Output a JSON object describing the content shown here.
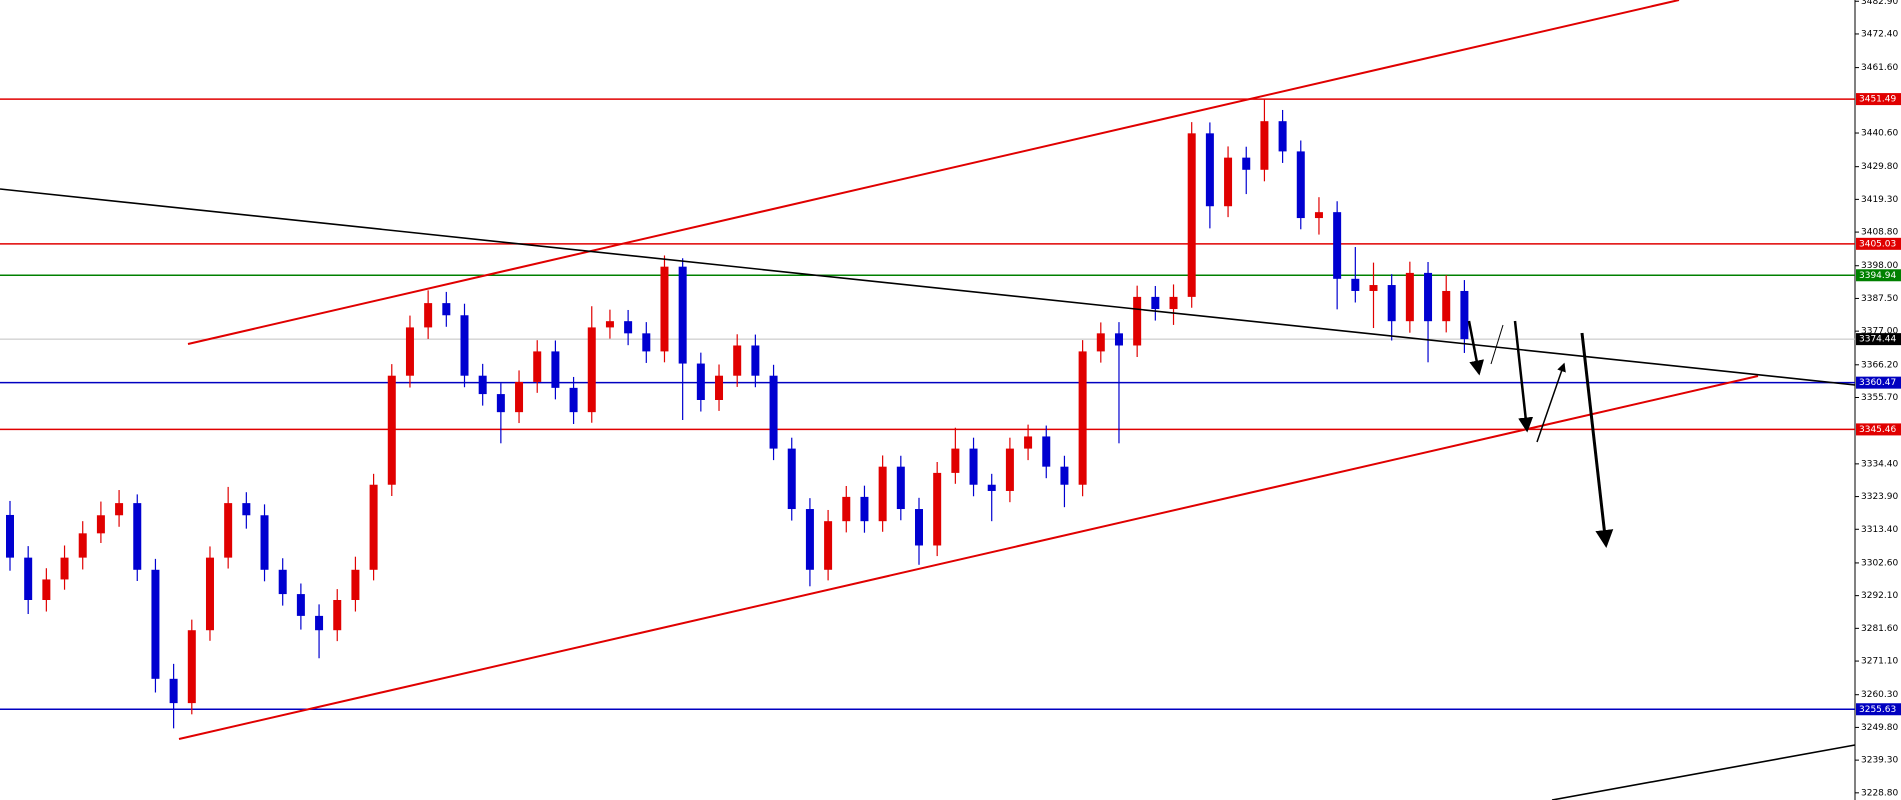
{
  "chart_data": {
    "type": "candlestick",
    "open": [
      3318.0,
      3304.3,
      3290.7,
      3297.3,
      3304.3,
      3312.1,
      3317.9,
      3321.8,
      3300.4,
      3265.4,
      3257.6,
      3281.0,
      3304.3,
      3321.8,
      3317.9,
      3300.4,
      3292.6,
      3285.6,
      3281.0,
      3290.7,
      3300.4,
      3327.7,
      3362.7,
      3378.2,
      3386.0,
      3382.1,
      3362.7,
      3356.8,
      3351.0,
      3360.7,
      3370.5,
      3358.8,
      3351.0,
      3378.2,
      3380.2,
      3376.3,
      3370.5,
      3397.7,
      3366.6,
      3354.9,
      3362.7,
      3372.4,
      3362.7,
      3339.3,
      3319.9,
      3300.4,
      3316.0,
      3323.8,
      3316.0,
      3333.5,
      3319.9,
      3308.2,
      3331.5,
      3339.3,
      3327.7,
      3325.7,
      3339.3,
      3343.2,
      3333.5,
      3327.7,
      3370.5,
      3376.3,
      3372.4,
      3388.0,
      3384.1,
      3388.0,
      3440.5,
      3417.1,
      3432.7,
      3428.8,
      3444.4,
      3434.7,
      3413.3,
      3415.2,
      3393.8,
      3389.9,
      3391.8,
      3380.2,
      3395.7,
      3380.2,
      3389.9
    ],
    "high": [
      3322.5,
      3308.0,
      3300.9,
      3308.2,
      3316.0,
      3322.3,
      3326.0,
      3324.6,
      3303.9,
      3270.2,
      3284.4,
      3307.9,
      3327.0,
      3325.3,
      3321.4,
      3304.1,
      3296.0,
      3289.3,
      3294.2,
      3304.6,
      3331.2,
      3366.4,
      3382.0,
      3390.1,
      3389.6,
      3385.8,
      3366.5,
      3360.3,
      3364.4,
      3374.1,
      3374.0,
      3362.3,
      3385.0,
      3383.9,
      3383.8,
      3379.9,
      3401.3,
      3400.4,
      3370.1,
      3366.3,
      3376.0,
      3375.9,
      3366.2,
      3342.8,
      3323.4,
      3319.6,
      3327.3,
      3327.4,
      3337.1,
      3337.0,
      3323.5,
      3335.0,
      3346.0,
      3342.8,
      3331.2,
      3342.8,
      3347.0,
      3346.7,
      3337.0,
      3374.1,
      3379.8,
      3379.9,
      3391.6,
      3391.5,
      3392.0,
      3444.1,
      3444.0,
      3436.3,
      3436.2,
      3451.5,
      3448.0,
      3438.2,
      3420.0,
      3418.7,
      3404.0,
      3399.0,
      3395.3,
      3399.3,
      3399.2,
      3395.0,
      3393.4
    ],
    "low": [
      3300.1,
      3286.2,
      3287.0,
      3294.0,
      3300.5,
      3309.0,
      3314.2,
      3296.8,
      3261.0,
      3249.5,
      3254.0,
      3277.6,
      3300.8,
      3313.6,
      3296.7,
      3288.9,
      3281.2,
      3272.0,
      3277.5,
      3287.0,
      3297.0,
      3324.1,
      3358.9,
      3374.5,
      3378.4,
      3359.0,
      3353.1,
      3341.0,
      3347.5,
      3357.2,
      3355.1,
      3347.2,
      3347.6,
      3374.6,
      3372.5,
      3366.8,
      3367.0,
      3348.5,
      3351.2,
      3351.4,
      3359.1,
      3359.0,
      3335.6,
      3316.2,
      3295.1,
      3297.0,
      3312.4,
      3312.3,
      3312.6,
      3316.3,
      3302.0,
      3304.8,
      3328.0,
      3324.0,
      3316.0,
      3322.1,
      3335.6,
      3329.8,
      3320.5,
      3324.0,
      3366.9,
      3341.0,
      3368.7,
      3380.4,
      3379.0,
      3384.5,
      3410.0,
      3413.6,
      3421.0,
      3425.1,
      3431.0,
      3409.7,
      3408.0,
      3384.0,
      3386.2,
      3378.0,
      3374.0,
      3376.5,
      3367.0,
      3376.6,
      3370.0
    ],
    "close": [
      3304.3,
      3290.7,
      3297.3,
      3304.3,
      3312.1,
      3317.9,
      3321.8,
      3300.4,
      3265.4,
      3257.6,
      3281.0,
      3304.3,
      3321.8,
      3317.9,
      3300.4,
      3292.6,
      3285.6,
      3281.0,
      3290.7,
      3300.4,
      3327.7,
      3362.7,
      3378.2,
      3386.0,
      3382.1,
      3362.7,
      3356.8,
      3351.0,
      3360.7,
      3370.5,
      3358.8,
      3351.0,
      3378.2,
      3380.2,
      3376.3,
      3370.5,
      3397.7,
      3366.6,
      3354.9,
      3362.7,
      3372.4,
      3362.7,
      3339.3,
      3319.9,
      3300.4,
      3316.0,
      3323.8,
      3316.0,
      3333.5,
      3319.9,
      3308.2,
      3331.5,
      3339.3,
      3327.7,
      3325.7,
      3339.3,
      3343.2,
      3333.5,
      3327.7,
      3370.5,
      3376.3,
      3372.4,
      3388.0,
      3384.1,
      3388.0,
      3440.5,
      3417.1,
      3432.7,
      3428.8,
      3444.4,
      3434.7,
      3413.3,
      3415.2,
      3393.8,
      3389.9,
      3391.8,
      3380.2,
      3395.7,
      3380.2,
      3389.9,
      3374.44
    ],
    "up_color": "#e00000",
    "down_color": "#0000d0",
    "ylim": [
      3226.5,
      3483.3
    ],
    "yticks": [
      {
        "value": 3482.9,
        "label": "3482.90"
      },
      {
        "value": 3472.4,
        "label": "3472.40"
      },
      {
        "value": 3461.6,
        "label": "3461.60"
      },
      {
        "value": 3440.6,
        "label": "3440.60"
      },
      {
        "value": 3429.8,
        "label": "3429.80"
      },
      {
        "value": 3419.3,
        "label": "3419.30"
      },
      {
        "value": 3408.8,
        "label": "3408.80"
      },
      {
        "value": 3398.0,
        "label": "3398.00"
      },
      {
        "value": 3387.5,
        "label": "3387.50"
      },
      {
        "value": 3377.0,
        "label": "3377.00"
      },
      {
        "value": 3366.2,
        "label": "3366.20"
      },
      {
        "value": 3355.7,
        "label": "3355.70"
      },
      {
        "value": 3334.4,
        "label": "3334.40"
      },
      {
        "value": 3323.9,
        "label": "3323.90"
      },
      {
        "value": 3313.4,
        "label": "3313.40"
      },
      {
        "value": 3302.6,
        "label": "3302.60"
      },
      {
        "value": 3292.1,
        "label": "3292.10"
      },
      {
        "value": 3281.6,
        "label": "3281.60"
      },
      {
        "value": 3271.1,
        "label": "3271.10"
      },
      {
        "value": 3260.3,
        "label": "3260.30"
      },
      {
        "value": 3249.8,
        "label": "3249.80"
      },
      {
        "value": 3239.3,
        "label": "3239.30"
      },
      {
        "value": 3228.8,
        "label": "3228.80"
      }
    ],
    "levels": [
      {
        "value": 3451.49,
        "color": "#e00000"
      },
      {
        "value": 3405.03,
        "color": "#e00000"
      },
      {
        "value": 3394.94,
        "color": "#008000"
      },
      {
        "value": 3360.47,
        "color": "#0000c0"
      },
      {
        "value": 3345.46,
        "color": "#e00000"
      },
      {
        "value": 3255.63,
        "color": "#0000c0"
      }
    ],
    "current_price": 3374.44,
    "current_color": "#000000"
  }
}
